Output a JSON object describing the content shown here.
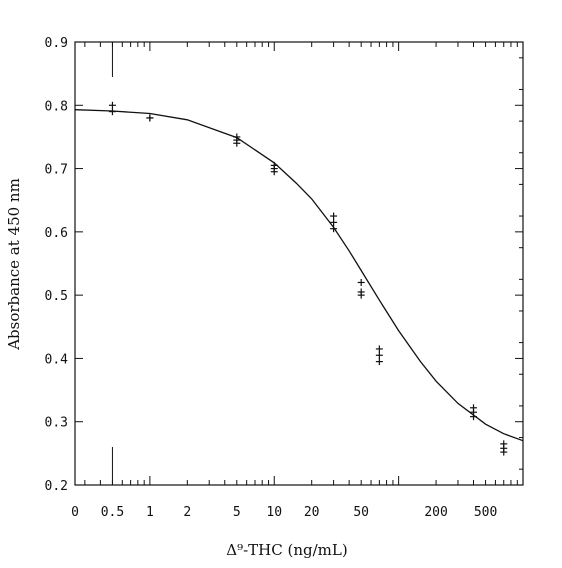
{
  "chart_data": {
    "type": "scatter",
    "title": "",
    "xlabel": "Δ⁹-THC (ng/mL)",
    "ylabel": "Absorbance at 450 nm",
    "x_scale": "log",
    "xlim": [
      0.25,
      1000
    ],
    "ylim": [
      0.2,
      0.9
    ],
    "grid": false,
    "legend": "none",
    "x_tick_labels": [
      "0",
      "0.5",
      "1",
      "2",
      "5",
      "10",
      "20",
      "50",
      "200",
      "500"
    ],
    "x_tick_values": [
      0.25,
      0.5,
      1,
      2,
      5,
      10,
      20,
      50,
      200,
      500
    ],
    "y_tick_labels": [
      "0.2",
      "0.3",
      "0.4",
      "0.5",
      "0.6",
      "0.7",
      "0.8",
      "0.9"
    ],
    "y_tick_values": [
      0.2,
      0.3,
      0.4,
      0.5,
      0.6,
      0.7,
      0.8,
      0.9
    ],
    "series": [
      {
        "x": [
          0.5,
          0.5,
          1,
          1,
          5,
          5,
          5,
          10,
          10,
          10,
          30,
          30,
          30,
          50,
          50,
          50,
          70,
          70,
          70,
          400,
          400,
          400,
          700,
          700,
          700
        ],
        "y": [
          0.8,
          0.79,
          0.78,
          0.78,
          0.75,
          0.745,
          0.74,
          0.705,
          0.7,
          0.695,
          0.625,
          0.615,
          0.605,
          0.52,
          0.505,
          0.5,
          0.415,
          0.405,
          0.395,
          0.322,
          0.315,
          0.308,
          0.265,
          0.258,
          0.252
        ]
      }
    ],
    "fit_curve": {
      "type": "four_parameter_logistic",
      "x": [
        0.25,
        0.5,
        1,
        2,
        5,
        10,
        15,
        20,
        30,
        40,
        50,
        70,
        100,
        150,
        200,
        300,
        500,
        700,
        1000
      ],
      "y": [
        0.793,
        0.791,
        0.787,
        0.777,
        0.749,
        0.709,
        0.677,
        0.652,
        0.607,
        0.57,
        0.539,
        0.492,
        0.444,
        0.395,
        0.364,
        0.329,
        0.296,
        0.281,
        0.27
      ]
    }
  }
}
